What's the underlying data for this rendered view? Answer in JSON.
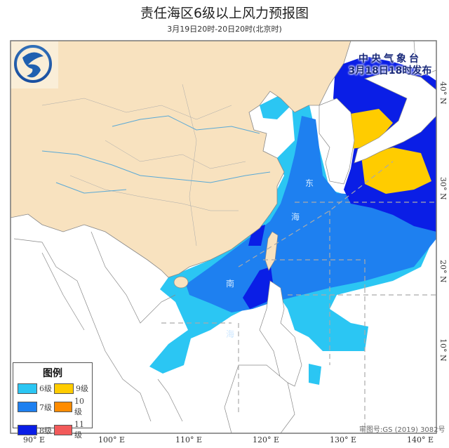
{
  "header": {
    "title": "责任海区6级以上风力预报图",
    "subtitle": "3月19日20时-20日20时(北京时)"
  },
  "publisher": {
    "name": "中央气象台",
    "issued": "3月18日18时发布"
  },
  "approval": "审图号:GS (2019) 3082号",
  "axes": {
    "longitude": [
      "90° E",
      "100° E",
      "110° E",
      "120° E",
      "130° E",
      "140° E"
    ],
    "latitude": [
      "40° N",
      "30° N",
      "20° N",
      "10° N"
    ]
  },
  "sea_labels": [
    "东",
    "海",
    "南",
    "海"
  ],
  "legend": {
    "title": "图例",
    "items": [
      {
        "label": "6级",
        "color": "#2bc6f3"
      },
      {
        "label": "9级",
        "color": "#ffcc00"
      },
      {
        "label": "7级",
        "color": "#1e80f0"
      },
      {
        "label": "10级",
        "color": "#ff8c00"
      },
      {
        "label": "8级",
        "color": "#0a1ee6"
      },
      {
        "label": "11级",
        "color": "#f25a5a"
      }
    ]
  },
  "colors": {
    "china_land": "#f8e2bf",
    "other_land": "#ffffff",
    "border": "#888888",
    "river": "#5aa9d6"
  },
  "logo": "cma-logo"
}
